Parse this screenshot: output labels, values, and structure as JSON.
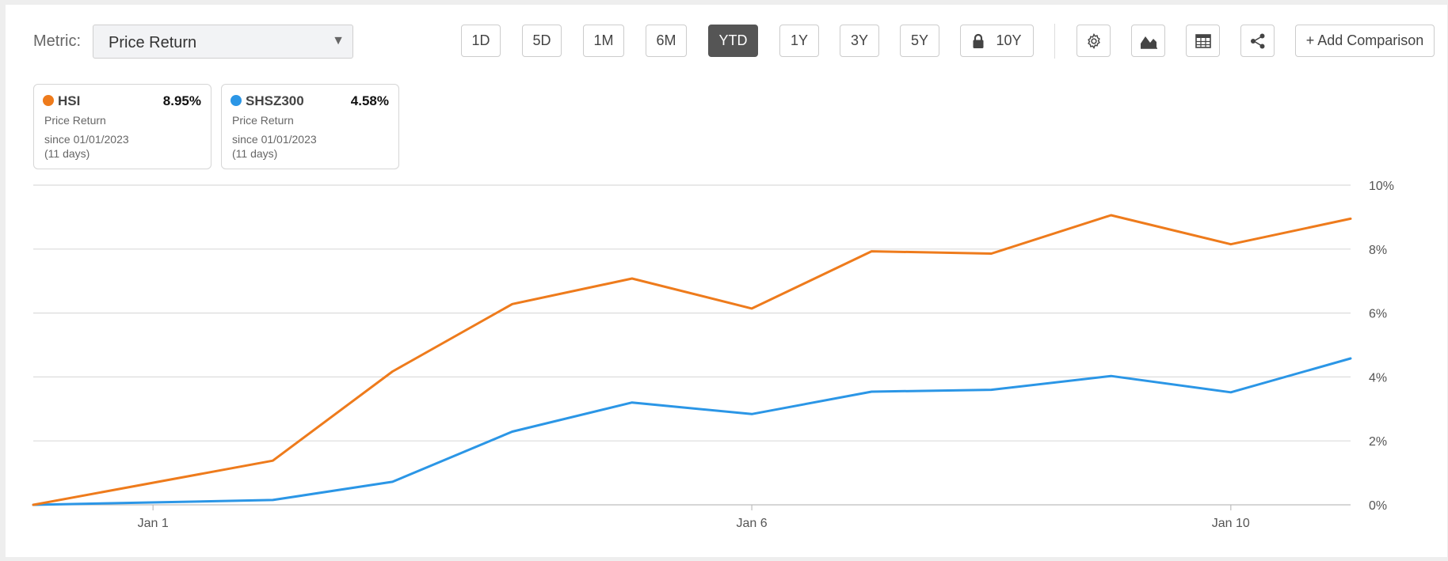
{
  "toolbar": {
    "metric_label": "Metric:",
    "metric_value": "Price Return",
    "ranges": [
      {
        "label": "1D",
        "active": false
      },
      {
        "label": "5D",
        "active": false
      },
      {
        "label": "1M",
        "active": false
      },
      {
        "label": "6M",
        "active": false
      },
      {
        "label": "YTD",
        "active": true
      },
      {
        "label": "1Y",
        "active": false
      },
      {
        "label": "3Y",
        "active": false
      },
      {
        "label": "5Y",
        "active": false
      },
      {
        "label": "10Y",
        "active": false,
        "locked": true
      }
    ],
    "tools": [
      "gear-icon",
      "area-chart-icon",
      "table-icon",
      "share-icon"
    ],
    "add_comparison": "+ Add Comparison"
  },
  "legend": [
    {
      "name": "HSI",
      "value": "8.95%",
      "metric": "Price Return",
      "since": "since 01/01/2023",
      "days": "(11 days)",
      "color": "#ee7b1c"
    },
    {
      "name": "SHSZ300",
      "value": "4.58%",
      "metric": "Price Return",
      "since": "since 01/01/2023",
      "days": "(11 days)",
      "color": "#2b96e6"
    }
  ],
  "chart_data": {
    "type": "line",
    "x": [
      "2022-12-31",
      "2023-01-02",
      "2023-01-03",
      "2023-01-04",
      "2023-01-05",
      "2023-01-06",
      "2023-01-07",
      "2023-01-08",
      "2023-01-09",
      "2023-01-10",
      "2023-01-11"
    ],
    "series": [
      {
        "name": "HSI",
        "color": "#ee7b1c",
        "values": [
          0.0,
          1.38,
          4.17,
          6.28,
          7.08,
          6.14,
          7.93,
          7.86,
          9.06,
          8.15,
          8.95
        ]
      },
      {
        "name": "SHSZ300",
        "color": "#2b96e6",
        "values": [
          0.0,
          0.15,
          0.72,
          2.29,
          3.2,
          2.84,
          3.54,
          3.6,
          4.03,
          3.52,
          4.58
        ]
      }
    ],
    "x_ticks": [
      {
        "x": "2023-01-01",
        "label": "Jan 1"
      },
      {
        "x": "2023-01-06",
        "label": "Jan 6"
      },
      {
        "x": "2023-01-10",
        "label": "Jan 10"
      }
    ],
    "y_ticks": [
      {
        "v": 0,
        "label": "0%"
      },
      {
        "v": 2,
        "label": "2%"
      },
      {
        "v": 4,
        "label": "4%"
      },
      {
        "v": 6,
        "label": "6%"
      },
      {
        "v": 8,
        "label": "8%"
      },
      {
        "v": 10,
        "label": "10%"
      }
    ],
    "ylim": [
      0,
      10
    ],
    "grid": true,
    "title": "",
    "xlabel": "",
    "ylabel": ""
  }
}
